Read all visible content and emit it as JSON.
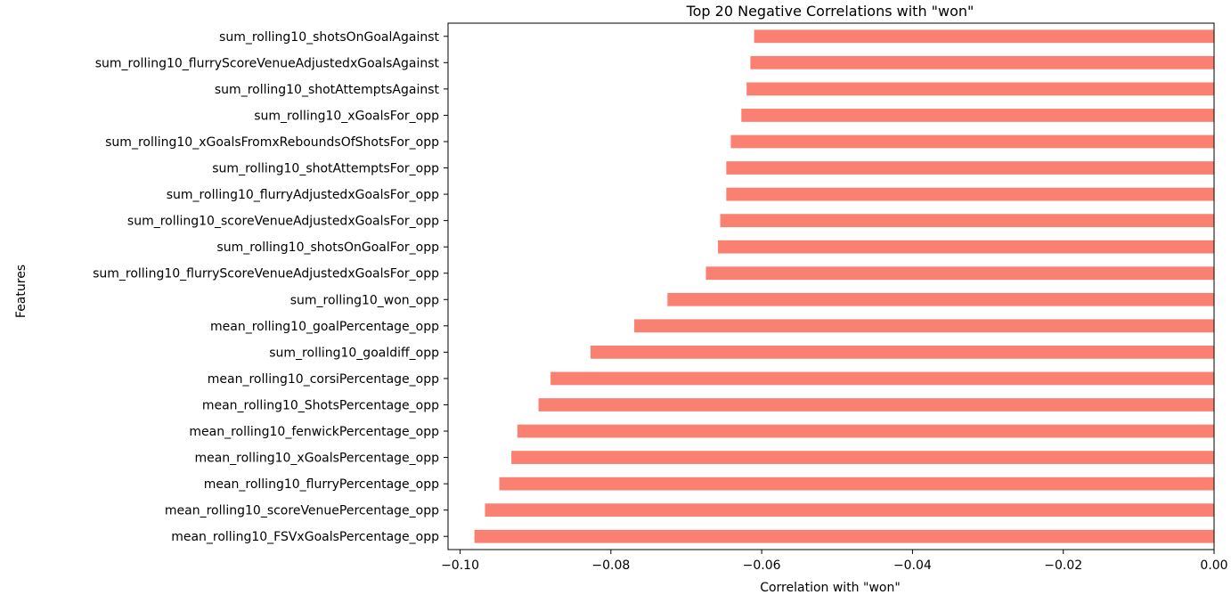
{
  "chart_data": {
    "type": "bar",
    "orientation": "horizontal",
    "title": "Top 20 Negative Correlations with \"won\"",
    "xlabel": "Correlation with \"won\"",
    "ylabel": "Features",
    "xlim": [
      -0.1016,
      0.0
    ],
    "x_ticks": [
      -0.1,
      -0.08,
      -0.06,
      -0.04,
      -0.02,
      0.0
    ],
    "x_tick_labels": [
      "−0.10",
      "−0.08",
      "−0.06",
      "−0.04",
      "−0.02",
      "0.00"
    ],
    "grid": false,
    "bar_color": "#fa8072",
    "categories": [
      "sum_rolling10_shotsOnGoalAgainst",
      "sum_rolling10_flurryScoreVenueAdjustedxGoalsAgainst",
      "sum_rolling10_shotAttemptsAgainst",
      "sum_rolling10_xGoalsFor_opp",
      "sum_rolling10_xGoalsFromxReboundsOfShotsFor_opp",
      "sum_rolling10_shotAttemptsFor_opp",
      "sum_rolling10_flurryAdjustedxGoalsFor_opp",
      "sum_rolling10_scoreVenueAdjustedxGoalsFor_opp",
      "sum_rolling10_shotsOnGoalFor_opp",
      "sum_rolling10_flurryScoreVenueAdjustedxGoalsFor_opp",
      "sum_rolling10_won_opp",
      "mean_rolling10_goalPercentage_opp",
      "sum_rolling10_goaldiff_opp",
      "mean_rolling10_corsiPercentage_opp",
      "mean_rolling10_ShotsPercentage_opp",
      "mean_rolling10_fenwickPercentage_opp",
      "mean_rolling10_xGoalsPercentage_opp",
      "mean_rolling10_flurryPercentage_opp",
      "mean_rolling10_scoreVenuePercentage_opp",
      "mean_rolling10_FSVxGoalsPercentage_opp"
    ],
    "values": [
      -0.061,
      -0.0615,
      -0.062,
      -0.0627,
      -0.0641,
      -0.0647,
      -0.0647,
      -0.0655,
      -0.0658,
      -0.0674,
      -0.0725,
      -0.0769,
      -0.0827,
      -0.088,
      -0.0896,
      -0.0924,
      -0.0932,
      -0.0948,
      -0.0967,
      -0.0981
    ]
  }
}
